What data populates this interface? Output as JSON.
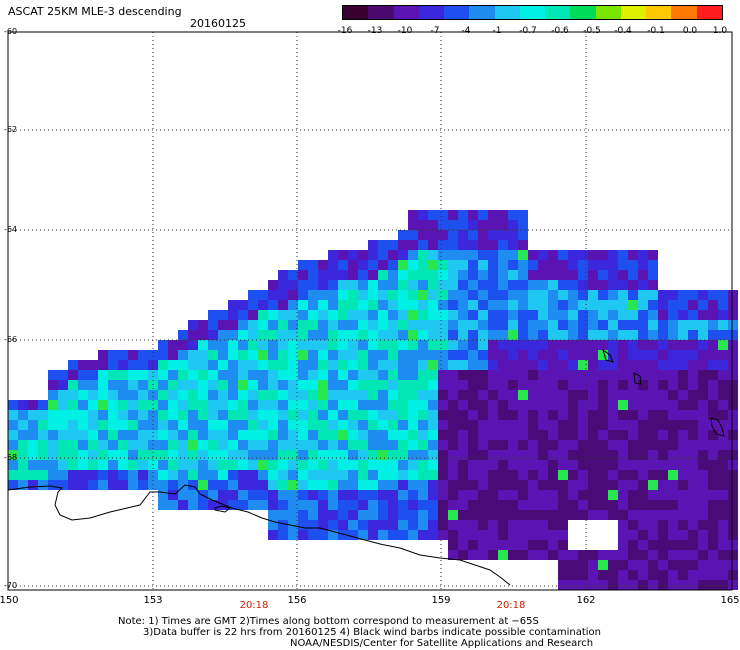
{
  "header": {
    "title": "ASCAT 25KM MLE-3 descending",
    "date": "20160125"
  },
  "colorbar": {
    "colors": [
      "#3a0030",
      "#4b0a6e",
      "#5a14b4",
      "#3c28dc",
      "#1e50f0",
      "#1e8cf0",
      "#1ec8f0",
      "#00f0e6",
      "#00e6b4",
      "#00dc5a",
      "#78e600",
      "#dcf000",
      "#ffc800",
      "#ff7800",
      "#ff1e1e"
    ],
    "labels": [
      "-16",
      "-13",
      "-10",
      "-7",
      "-4",
      "-1",
      "-0.7",
      "-0.6",
      "-0.5",
      "-0.4",
      "-0.1",
      "0.0",
      "1.0"
    ]
  },
  "map": {
    "latitudes": [
      "-60",
      "-62",
      "-64",
      "-66",
      "-68",
      "-70"
    ],
    "longitudes": [
      "150",
      "153",
      "156",
      "159",
      "162",
      "165"
    ],
    "times": [
      "20:18",
      "20:18"
    ]
  },
  "notes": {
    "line1": "Note: 1) Times are GMT 2)Times along bottom correspond to measurement at −65S",
    "line2": "3)Data buffer is 22 hrs from 20160125 4) Black wind barbs indicate possible contamination",
    "line3": "NOAA/NESDIS/Center for Satellite Applications and Research"
  }
}
